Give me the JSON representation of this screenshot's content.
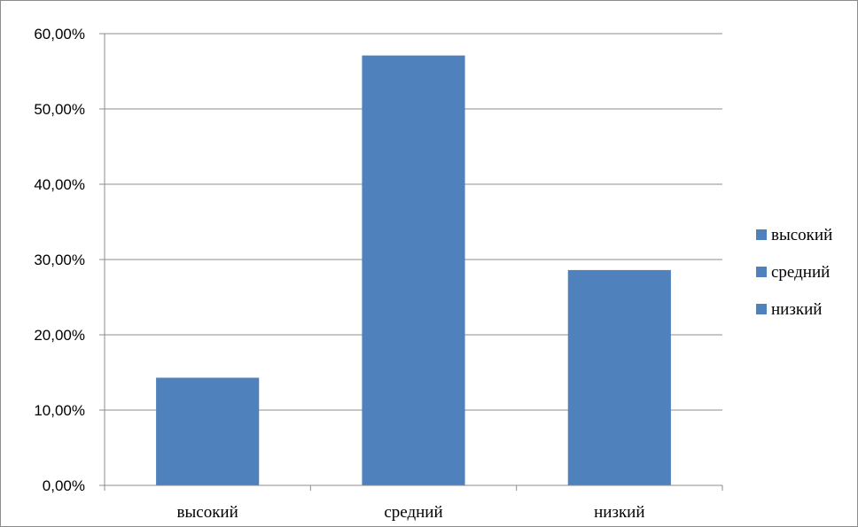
{
  "chart_data": {
    "type": "bar",
    "title": "",
    "xlabel": "",
    "ylabel": "",
    "categories": [
      "высокий",
      "средний",
      "низкий"
    ],
    "values": [
      14.3,
      57.1,
      28.6
    ],
    "ylim": [
      0,
      60
    ],
    "y_ticks": [
      "0,00%",
      "10,00%",
      "20,00%",
      "30,00%",
      "40,00%",
      "50,00%",
      "60,00%"
    ],
    "grid": true,
    "bar_color": "#4f81bd",
    "legend": {
      "position": "right",
      "entries": [
        "высокий",
        "средний",
        "низкий"
      ]
    }
  }
}
